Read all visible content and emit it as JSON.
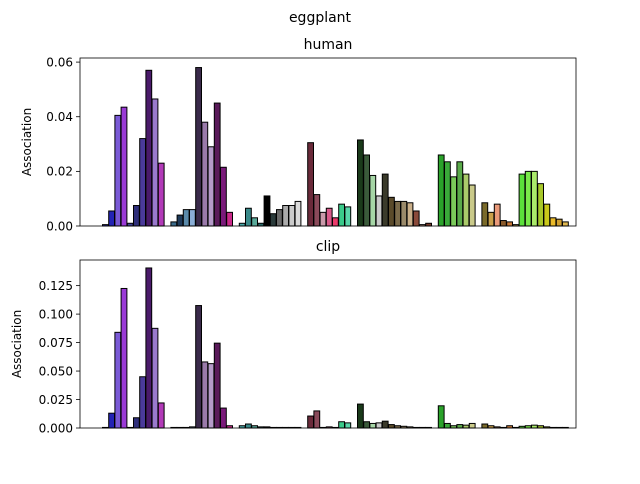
{
  "figure": {
    "suptitle": "eggplant"
  },
  "chart_data": [
    {
      "type": "bar",
      "title": "human",
      "xlabel": "",
      "ylabel": "Association",
      "ylim": [
        0,
        0.0615
      ],
      "yticks": [
        "0.00",
        "0.02",
        "0.04",
        "0.06"
      ],
      "ytick_values": [
        0,
        0.02,
        0.04,
        0.06
      ],
      "grid": false,
      "values": [
        0.0005,
        0.0055,
        0.0405,
        0.0435,
        0.001,
        0.0075,
        0.032,
        0.057,
        0.0465,
        0.023,
        0.0015,
        0.004,
        0.006,
        0.006,
        0.058,
        0.038,
        0.029,
        0.045,
        0.0215,
        0.005,
        0.001,
        0.0065,
        0.003,
        0.001,
        0.011,
        0.0045,
        0.006,
        0.0075,
        0.0075,
        0.009,
        0.0305,
        0.0115,
        0.005,
        0.0065,
        0.003,
        0.008,
        0.007,
        0.0315,
        0.026,
        0.0185,
        0.011,
        0.019,
        0.0105,
        0.009,
        0.009,
        0.0085,
        0.0055,
        0.0005,
        0.001,
        0.026,
        0.0235,
        0.018,
        0.0235,
        0.019,
        0.015,
        0.0085,
        0.005,
        0.008,
        0.002,
        0.0015,
        0.0005,
        0.019,
        0.02,
        0.02,
        0.0155,
        0.008,
        0.003,
        0.0025,
        0.0015
      ]
    },
    {
      "type": "bar",
      "title": "clip",
      "xlabel": "",
      "ylabel": "Association",
      "ylim": [
        0,
        0.1475
      ],
      "yticks": [
        "0.000",
        "0.025",
        "0.050",
        "0.075",
        "0.100",
        "0.125"
      ],
      "ytick_values": [
        0,
        0.025,
        0.05,
        0.075,
        0.1,
        0.125
      ],
      "grid": false,
      "values": [
        0.0005,
        0.013,
        0.084,
        0.1225,
        0.0005,
        0.009,
        0.045,
        0.1405,
        0.0875,
        0.022,
        0.0005,
        0.0005,
        0.0005,
        0.001,
        0.1075,
        0.058,
        0.0565,
        0.0745,
        0.0175,
        0.002,
        0.002,
        0.0035,
        0.002,
        0.001,
        0.001,
        0.0005,
        0.0005,
        0.0005,
        0.0005,
        0.0005,
        0.0105,
        0.015,
        0.0005,
        0.001,
        0.0005,
        0.0055,
        0.0045,
        0.021,
        0.0055,
        0.004,
        0.0045,
        0.006,
        0.003,
        0.002,
        0.0015,
        0.001,
        0.0005,
        0.0005,
        0.0005,
        0.0195,
        0.004,
        0.002,
        0.003,
        0.0025,
        0.004,
        0.0035,
        0.002,
        0.001,
        0.0005,
        0.002,
        0.0005,
        0.0015,
        0.002,
        0.0025,
        0.002,
        0.001,
        0.0005,
        0.0005,
        0.0005
      ]
    }
  ],
  "bar_colors": [
    "#2a2aa8",
    "#2323b4",
    "#7a5ad6",
    "#9a3ad6",
    "#46469a",
    "#2f2f7a",
    "#4a3a9a",
    "#4a1a6a",
    "#9a7acd",
    "#b23ab8",
    "#3a6a8a",
    "#1e3a5a",
    "#5a8aaa",
    "#8aaed6",
    "#3a2a4a",
    "#9a7aaa",
    "#b59ac9",
    "#5a1a5a",
    "#7a1a7a",
    "#ca2a8a",
    "#4aaaaa",
    "#3a8a8a",
    "#5aaa9a",
    "#2a6a6a",
    "#000000",
    "#2a3a3a",
    "#6a6a6a",
    "#aaaaaa",
    "#cacaca",
    "#dadada",
    "#6a2a3a",
    "#8a4a5a",
    "#ca9aaa",
    "#da5a8a",
    "#ea3a6a",
    "#3aca8a",
    "#5ad6aa",
    "#1a3a1a",
    "#3a5a3a",
    "#a6d6a6",
    "#cacaca",
    "#3a3a2a",
    "#5a4a2a",
    "#7a6a4a",
    "#9a8a6a",
    "#cab08a",
    "#8a4a3a",
    "#caa08a",
    "#7a3a2a",
    "#2aa22a",
    "#3aaa3a",
    "#7aca5a",
    "#5aaa4a",
    "#aaca6a",
    "#caca8a",
    "#7a6a2a",
    "#caa04a",
    "#ea9a7a",
    "#8a5a2a",
    "#ca7a3a",
    "#caaa5a",
    "#5ae03a",
    "#7aea4a",
    "#aaea6a",
    "#a8c82a",
    "#cac81a",
    "#eaba2a",
    "#d0a030",
    "#e0b850"
  ]
}
